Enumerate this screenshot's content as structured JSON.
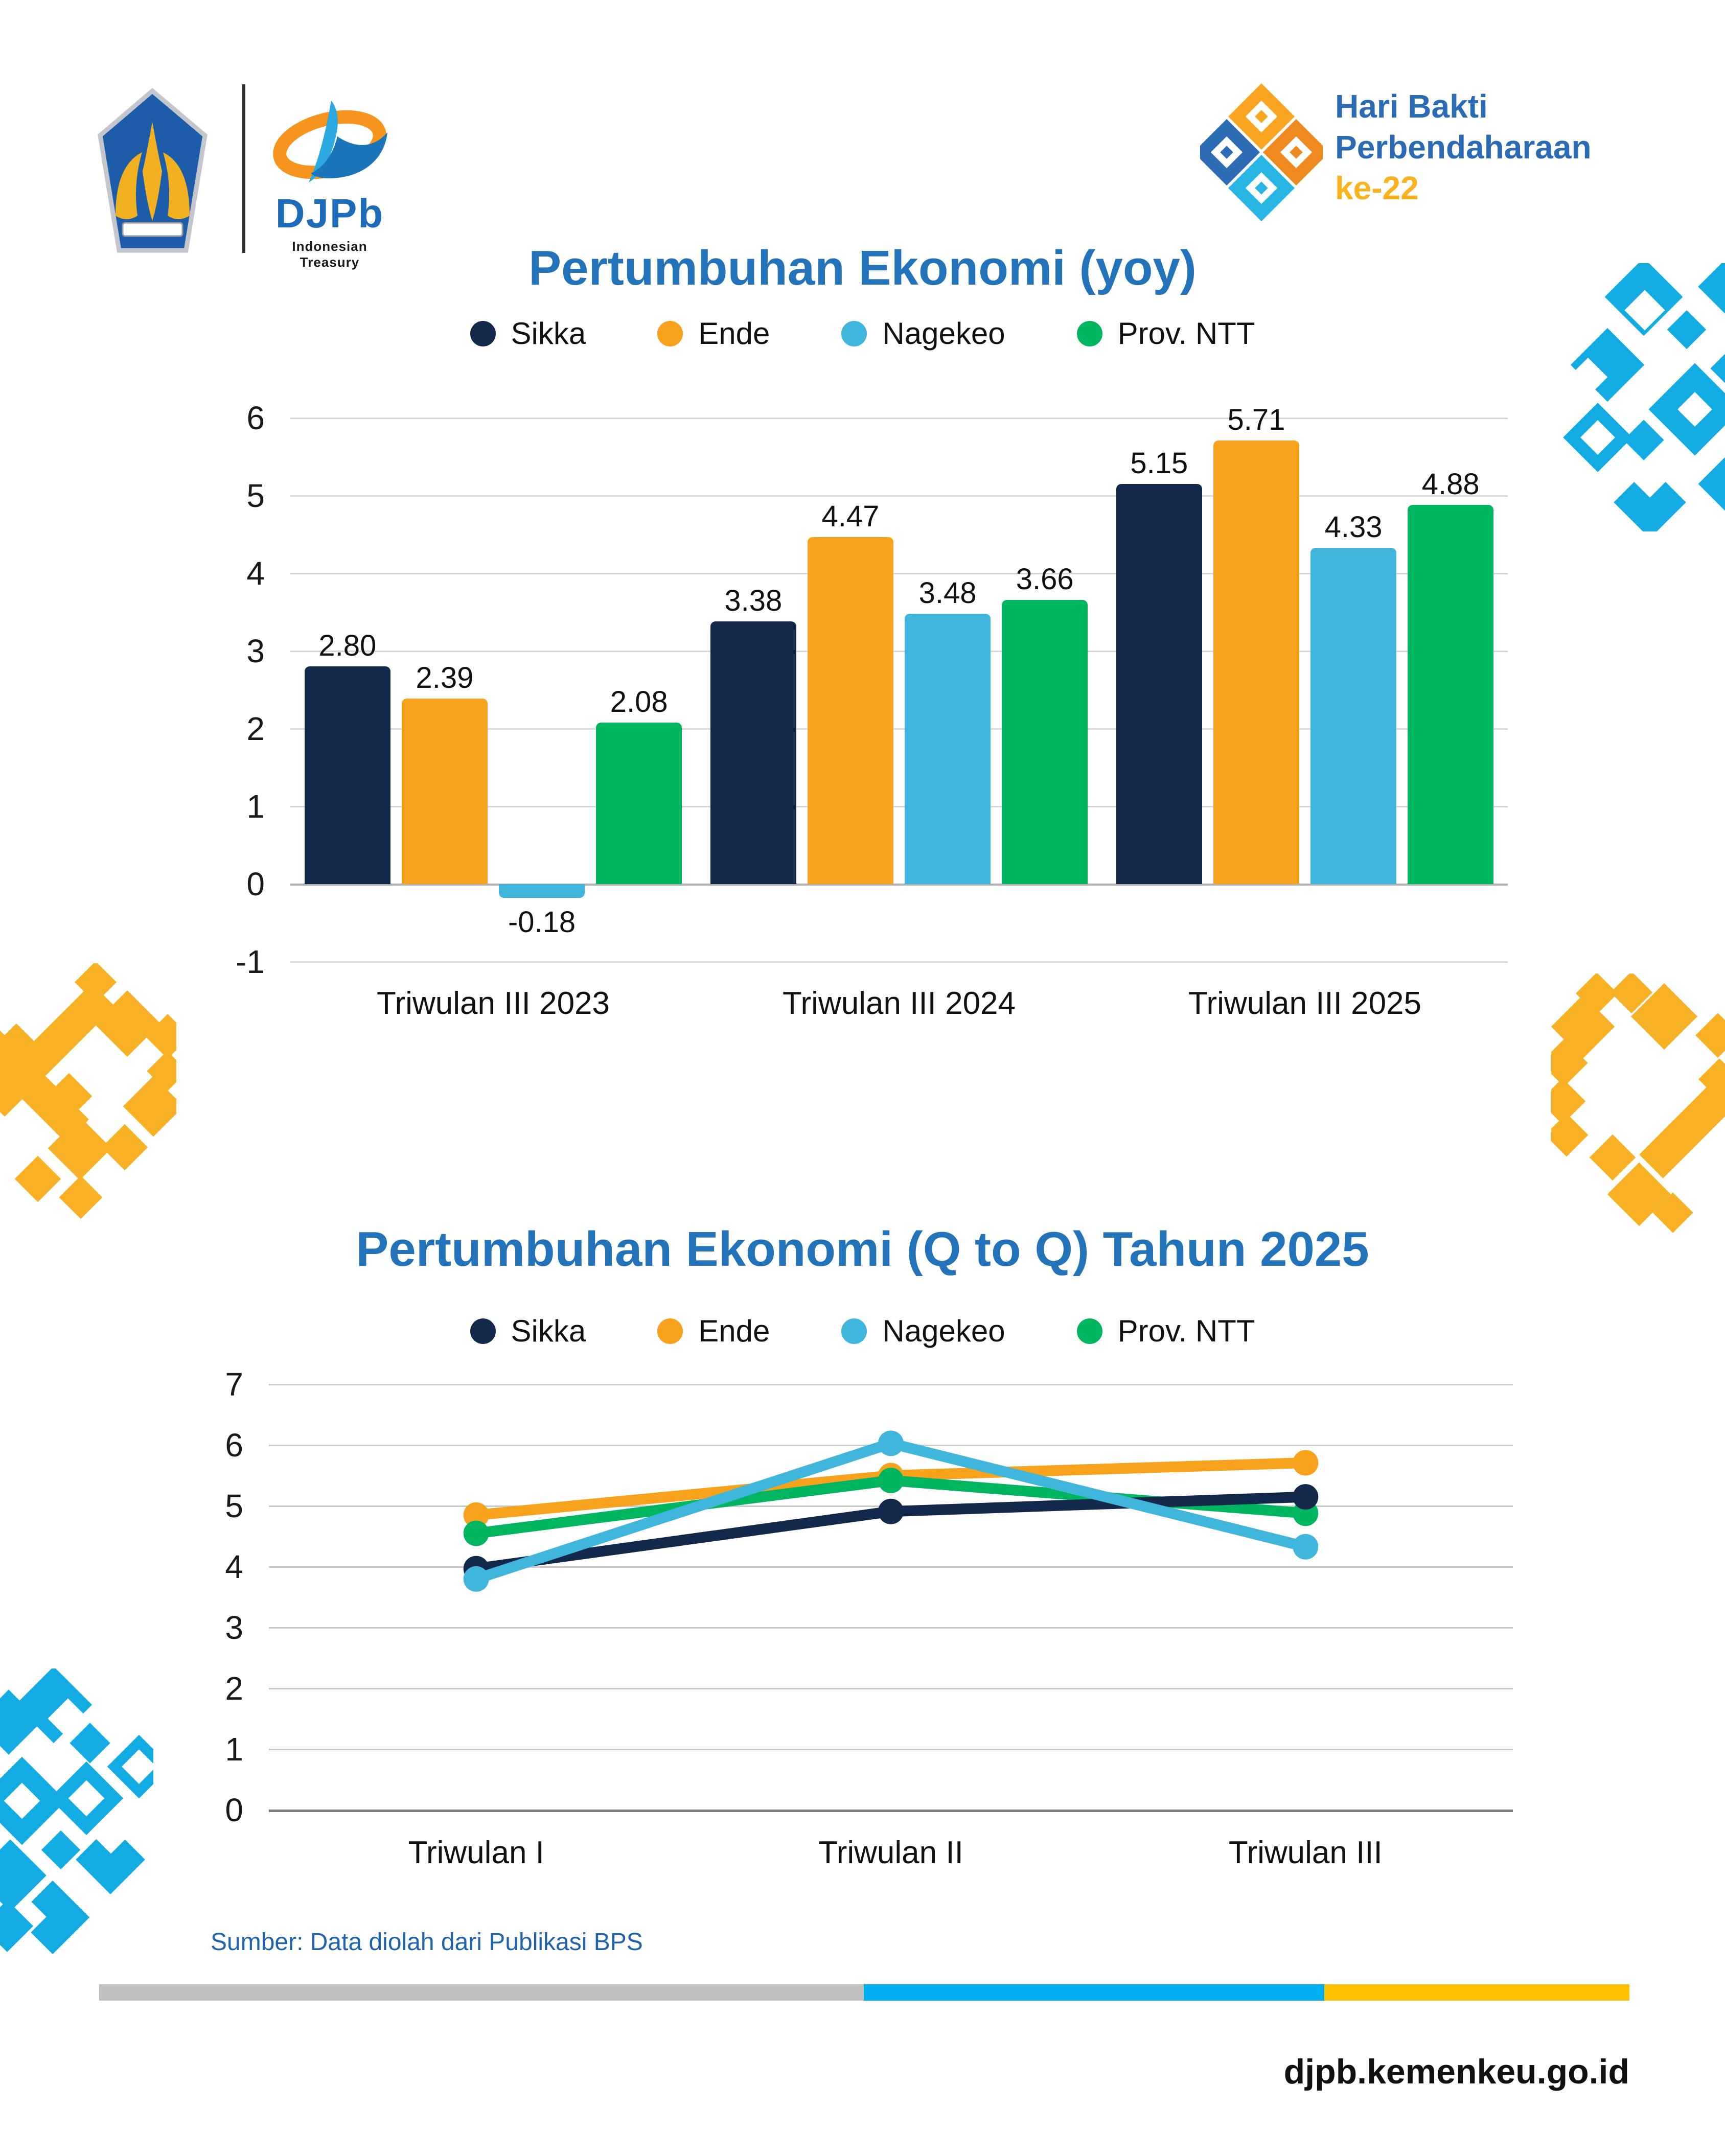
{
  "header": {
    "djpb_wordmark": "DJPb",
    "djpb_tagline": "Indonesian Treasury",
    "hbp_logo": {
      "line1": "Hari Bakti",
      "line2": "Perbendaharaan",
      "line3": "ke-22"
    }
  },
  "colors": {
    "title_blue": "#2273B9",
    "djpb_blue": "#1E6CB9",
    "hbp_blue": "#2A6BB3",
    "hbp_amber": "#F9B220",
    "decor_cyan": "#12ACE3",
    "decor_yellow": "#F8B024",
    "footer_gray": "#BFBFBF",
    "footer_cyan": "#00B0F0",
    "footer_yellow": "#FFC000",
    "source_blue": "#1F63AE",
    "grid_gray": "#D6D6D6"
  },
  "chart_data": [
    {
      "type": "bar",
      "title": "Pertumbuhan Ekonomi (yoy)",
      "categories": [
        "Triwulan III 2023",
        "Triwulan III 2024",
        "Triwulan III 2025"
      ],
      "series": [
        {
          "name": "Sikka",
          "color": "#13294B",
          "values": [
            2.8,
            3.38,
            5.15
          ]
        },
        {
          "name": "Ende",
          "color": "#F6A21D",
          "values": [
            2.39,
            4.47,
            5.71
          ]
        },
        {
          "name": "Nagekeo",
          "color": "#41B6DC",
          "values": [
            -0.18,
            3.48,
            4.33
          ]
        },
        {
          "name": "Prov. NTT",
          "color": "#00B560",
          "values": [
            2.08,
            3.66,
            4.88
          ]
        }
      ],
      "ylim": [
        -1,
        6
      ],
      "yticks": [
        6,
        5,
        4,
        3,
        2,
        1,
        0,
        -1
      ],
      "value_labels": true,
      "grid": true,
      "legend_position": "top"
    },
    {
      "type": "line",
      "title": "Pertumbuhan Ekonomi (Q to Q) Tahun 2025",
      "categories": [
        "Triwulan I",
        "Triwulan II",
        "Triwulan III"
      ],
      "series": [
        {
          "name": "Sikka",
          "color": "#13294B",
          "values": [
            3.97,
            4.91,
            5.15
          ]
        },
        {
          "name": "Ende",
          "color": "#F6A21D",
          "values": [
            4.85,
            5.5,
            5.71
          ]
        },
        {
          "name": "Nagekeo",
          "color": "#41B6DC",
          "values": [
            3.8,
            6.03,
            4.33
          ]
        },
        {
          "name": "Prov. NTT",
          "color": "#00B560",
          "values": [
            4.55,
            5.42,
            4.88
          ]
        }
      ],
      "ylim": [
        0,
        7
      ],
      "yticks": [
        7,
        6,
        5,
        4,
        3,
        2,
        1,
        0
      ],
      "value_labels": false,
      "grid": true,
      "legend_position": "top"
    }
  ],
  "footer": {
    "source": "Sumber: Data diolah dari Publikasi BPS",
    "website": "djpb.kemenkeu.go.id"
  }
}
